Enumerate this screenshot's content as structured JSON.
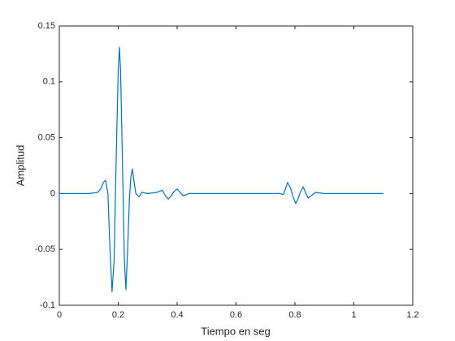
{
  "chart_data": {
    "type": "line",
    "xlabel": "Tiempo en seg",
    "ylabel": "Amplitud",
    "x": [
      0,
      0.1,
      0.13,
      0.14,
      0.15,
      0.157,
      0.165,
      0.172,
      0.179,
      0.186,
      0.193,
      0.2,
      0.204,
      0.208,
      0.215,
      0.221,
      0.226,
      0.232,
      0.238,
      0.243,
      0.248,
      0.253,
      0.26,
      0.27,
      0.28,
      0.3,
      0.33,
      0.35,
      0.36,
      0.37,
      0.38,
      0.39,
      0.4,
      0.41,
      0.42,
      0.44,
      0.5,
      0.6,
      0.7,
      0.75,
      0.76,
      0.765,
      0.775,
      0.785,
      0.795,
      0.803,
      0.81,
      0.818,
      0.828,
      0.836,
      0.845,
      0.855,
      0.87,
      0.9,
      1.0,
      1.1
    ],
    "series": [
      {
        "color": "#0072bd",
        "values": [
          0,
          0,
          0.001,
          0.004,
          0.01,
          0.012,
          0,
          -0.05,
          -0.088,
          -0.06,
          0.03,
          0.11,
          0.131,
          0.11,
          0.02,
          -0.06,
          -0.086,
          -0.05,
          -0.005,
          0.015,
          0.022,
          0.012,
          0,
          -0.003,
          0.001,
          0,
          0.001,
          0.003,
          -0.002,
          -0.005,
          -0.002,
          0.002,
          0.004,
          0.001,
          -0.002,
          0,
          0,
          0,
          0,
          0,
          -0.001,
          0.002,
          0.01,
          0.005,
          -0.004,
          -0.009,
          -0.005,
          0.001,
          0.006,
          0.001,
          -0.004,
          -0.002,
          0.001,
          0,
          0,
          0
        ]
      }
    ],
    "xlim": [
      0,
      1.2
    ],
    "xticks": [
      0,
      0.2,
      0.4,
      0.6,
      0.8,
      1,
      1.2
    ],
    "ylim": [
      -0.1,
      0.15
    ],
    "yticks": [
      -0.1,
      -0.05,
      0,
      0.05,
      0.1,
      0.15
    ],
    "grid": false
  }
}
